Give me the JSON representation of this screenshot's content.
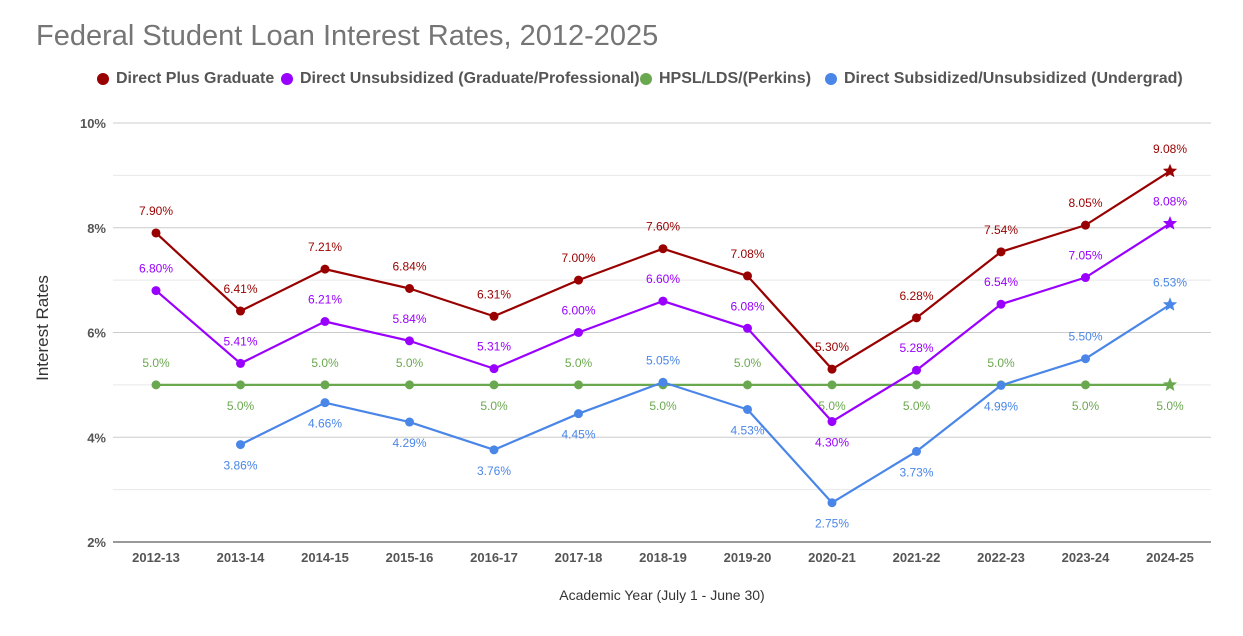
{
  "chart_data": {
    "type": "line",
    "title": "Federal Student Loan Interest Rates, 2012-2025",
    "xlabel": "Academic Year (July 1 - June 30)",
    "ylabel": "Interest Rates",
    "ylim": [
      2,
      10
    ],
    "yticks": [
      "2%",
      "4%",
      "6%",
      "8%",
      "10%"
    ],
    "grid": true,
    "legend_position": "top",
    "categories": [
      "2012-13",
      "2013-14",
      "2014-15",
      "2015-16",
      "2016-17",
      "2017-18",
      "2018-19",
      "2019-20",
      "2020-21",
      "2021-22",
      "2022-23",
      "2023-24",
      "2024-25"
    ],
    "series": [
      {
        "name": "Direct Plus Graduate",
        "color": "#990000",
        "values": [
          7.9,
          6.41,
          7.21,
          6.84,
          6.31,
          7.0,
          7.6,
          7.08,
          5.3,
          6.28,
          7.54,
          8.05,
          9.08
        ],
        "labels": [
          "7.90%",
          "6.41%",
          "7.21%",
          "6.84%",
          "6.31%",
          "7.00%",
          "7.60%",
          "7.08%",
          "5.30%",
          "6.28%",
          "7.54%",
          "8.05%",
          "9.08%"
        ],
        "label_position": "above",
        "last_marker": "star"
      },
      {
        "name": "Direct Unsubsidized (Graduate/Professional)",
        "color": "#9900ff",
        "values": [
          6.8,
          5.41,
          6.21,
          5.84,
          5.31,
          6.0,
          6.6,
          6.08,
          4.3,
          5.28,
          6.54,
          7.05,
          8.08
        ],
        "labels": [
          "6.80%",
          "5.41%",
          "6.21%",
          "5.84%",
          "5.31%",
          "6.00%",
          "6.60%",
          "6.08%",
          "4.30%",
          "5.28%",
          "6.54%",
          "7.05%",
          "8.08%"
        ],
        "label_position": [
          "above",
          "above",
          "above",
          "above",
          "above",
          "above",
          "above",
          "above",
          "below",
          "above",
          "above",
          "above",
          "above"
        ],
        "last_marker": "star"
      },
      {
        "name": "HPSL/LDS/(Perkins)",
        "color": "#6aa84f",
        "values": [
          5.0,
          5.0,
          5.0,
          5.0,
          5.0,
          5.0,
          5.0,
          5.0,
          5.0,
          5.0,
          5.0,
          5.0,
          5.0
        ],
        "labels": [
          "5.0%",
          "5.0%",
          "5.0%",
          "5.0%",
          "5.0%",
          "5.0%",
          "5.0%",
          "5.0%",
          "5.0%",
          "5.0%",
          "5.0%",
          "5.0%",
          "5.0%"
        ],
        "label_position": [
          "above",
          "below",
          "above",
          "above",
          "below",
          "above",
          "below",
          "above",
          "below",
          "below",
          "above",
          "below",
          "below"
        ],
        "last_marker": "star"
      },
      {
        "name": "Direct Subsidized/Unsubsidized (Undergrad)",
        "color": "#4a86e8",
        "values": [
          null,
          3.86,
          4.66,
          4.29,
          3.76,
          4.45,
          5.05,
          4.53,
          2.75,
          3.73,
          4.99,
          5.5,
          6.53
        ],
        "labels": [
          "",
          "3.86%",
          "4.66%",
          "4.29%",
          "3.76%",
          "4.45%",
          "5.05%",
          "4.53%",
          "2.75%",
          "3.73%",
          "4.99%",
          "5.50%",
          "6.53%"
        ],
        "label_position": [
          "below",
          "below",
          "below",
          "below",
          "below",
          "below",
          "above",
          "below",
          "below",
          "below",
          "below",
          "above",
          "above"
        ],
        "last_marker": "star"
      }
    ]
  }
}
